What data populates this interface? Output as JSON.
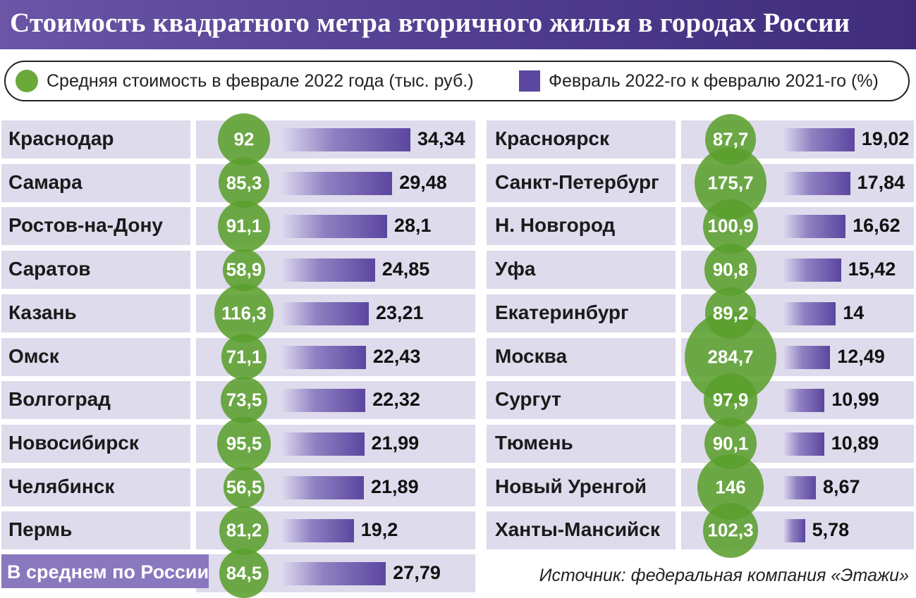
{
  "title": "Стоимость квадратного метра вторичного жилья в городах России",
  "legend": {
    "price_label": "Средняя стоимость в феврале 2022 года (тыс. руб.)",
    "change_label": "Февраль 2022-го к февралю 2021-го (%)"
  },
  "colors": {
    "circle": "#5a9e2c",
    "bar": "#5b46a0",
    "row": "#dedbec",
    "header": "#4d3a8c"
  },
  "chart_data": {
    "type": "table",
    "title": "Стоимость квадратного метра вторичного жилья в городах России",
    "columns": [
      "Средняя стоимость в феврале 2022 года (тыс. руб.)",
      "Февраль 2022-го к февралю 2021-го (%)"
    ],
    "left": [
      {
        "city": "Краснодар",
        "price": "92",
        "change": "34,34",
        "price_num": 92,
        "change_num": 34.34
      },
      {
        "city": "Самара",
        "price": "85,3",
        "change": "29,48",
        "price_num": 85.3,
        "change_num": 29.48
      },
      {
        "city": "Ростов-на-Дону",
        "price": "91,1",
        "change": "28,1",
        "price_num": 91.1,
        "change_num": 28.1
      },
      {
        "city": "Саратов",
        "price": "58,9",
        "change": "24,85",
        "price_num": 58.9,
        "change_num": 24.85
      },
      {
        "city": "Казань",
        "price": "116,3",
        "change": "23,21",
        "price_num": 116.3,
        "change_num": 23.21
      },
      {
        "city": "Омск",
        "price": "71,1",
        "change": "22,43",
        "price_num": 71.1,
        "change_num": 22.43
      },
      {
        "city": "Волгоград",
        "price": "73,5",
        "change": "22,32",
        "price_num": 73.5,
        "change_num": 22.32
      },
      {
        "city": "Новосибирск",
        "price": "95,5",
        "change": "21,99",
        "price_num": 95.5,
        "change_num": 21.99
      },
      {
        "city": "Челябинск",
        "price": "56,5",
        "change": "21,89",
        "price_num": 56.5,
        "change_num": 21.89
      },
      {
        "city": "Пермь",
        "price": "81,2",
        "change": "19,2",
        "price_num": 81.2,
        "change_num": 19.2
      }
    ],
    "right": [
      {
        "city": "Красноярск",
        "price": "87,7",
        "change": "19,02",
        "price_num": 87.7,
        "change_num": 19.02
      },
      {
        "city": "Санкт-Петербург",
        "price": "175,7",
        "change": "17,84",
        "price_num": 175.7,
        "change_num": 17.84
      },
      {
        "city": "Н. Новгород",
        "price": "100,9",
        "change": "16,62",
        "price_num": 100.9,
        "change_num": 16.62
      },
      {
        "city": "Уфа",
        "price": "90,8",
        "change": "15,42",
        "price_num": 90.8,
        "change_num": 15.42
      },
      {
        "city": "Екатеринбург",
        "price": "89,2",
        "change": "14",
        "price_num": 89.2,
        "change_num": 14
      },
      {
        "city": "Москва",
        "price": "284,7",
        "change": "12,49",
        "price_num": 284.7,
        "change_num": 12.49
      },
      {
        "city": "Сургут",
        "price": "97,9",
        "change": "10,99",
        "price_num": 97.9,
        "change_num": 10.99
      },
      {
        "city": "Тюмень",
        "price": "90,1",
        "change": "10,89",
        "price_num": 90.1,
        "change_num": 10.89
      },
      {
        "city": "Новый Уренгой",
        "price": "146",
        "change": "8,67",
        "price_num": 146,
        "change_num": 8.67
      },
      {
        "city": "Ханты-Мансийск",
        "price": "102,3",
        "change": "5,78",
        "price_num": 102.3,
        "change_num": 5.78
      }
    ],
    "average": {
      "city": "В среднем по России",
      "price": "84,5",
      "change": "27,79",
      "price_num": 84.5,
      "change_num": 27.79
    }
  },
  "source": "Источник: федеральная компания «Этажи»"
}
